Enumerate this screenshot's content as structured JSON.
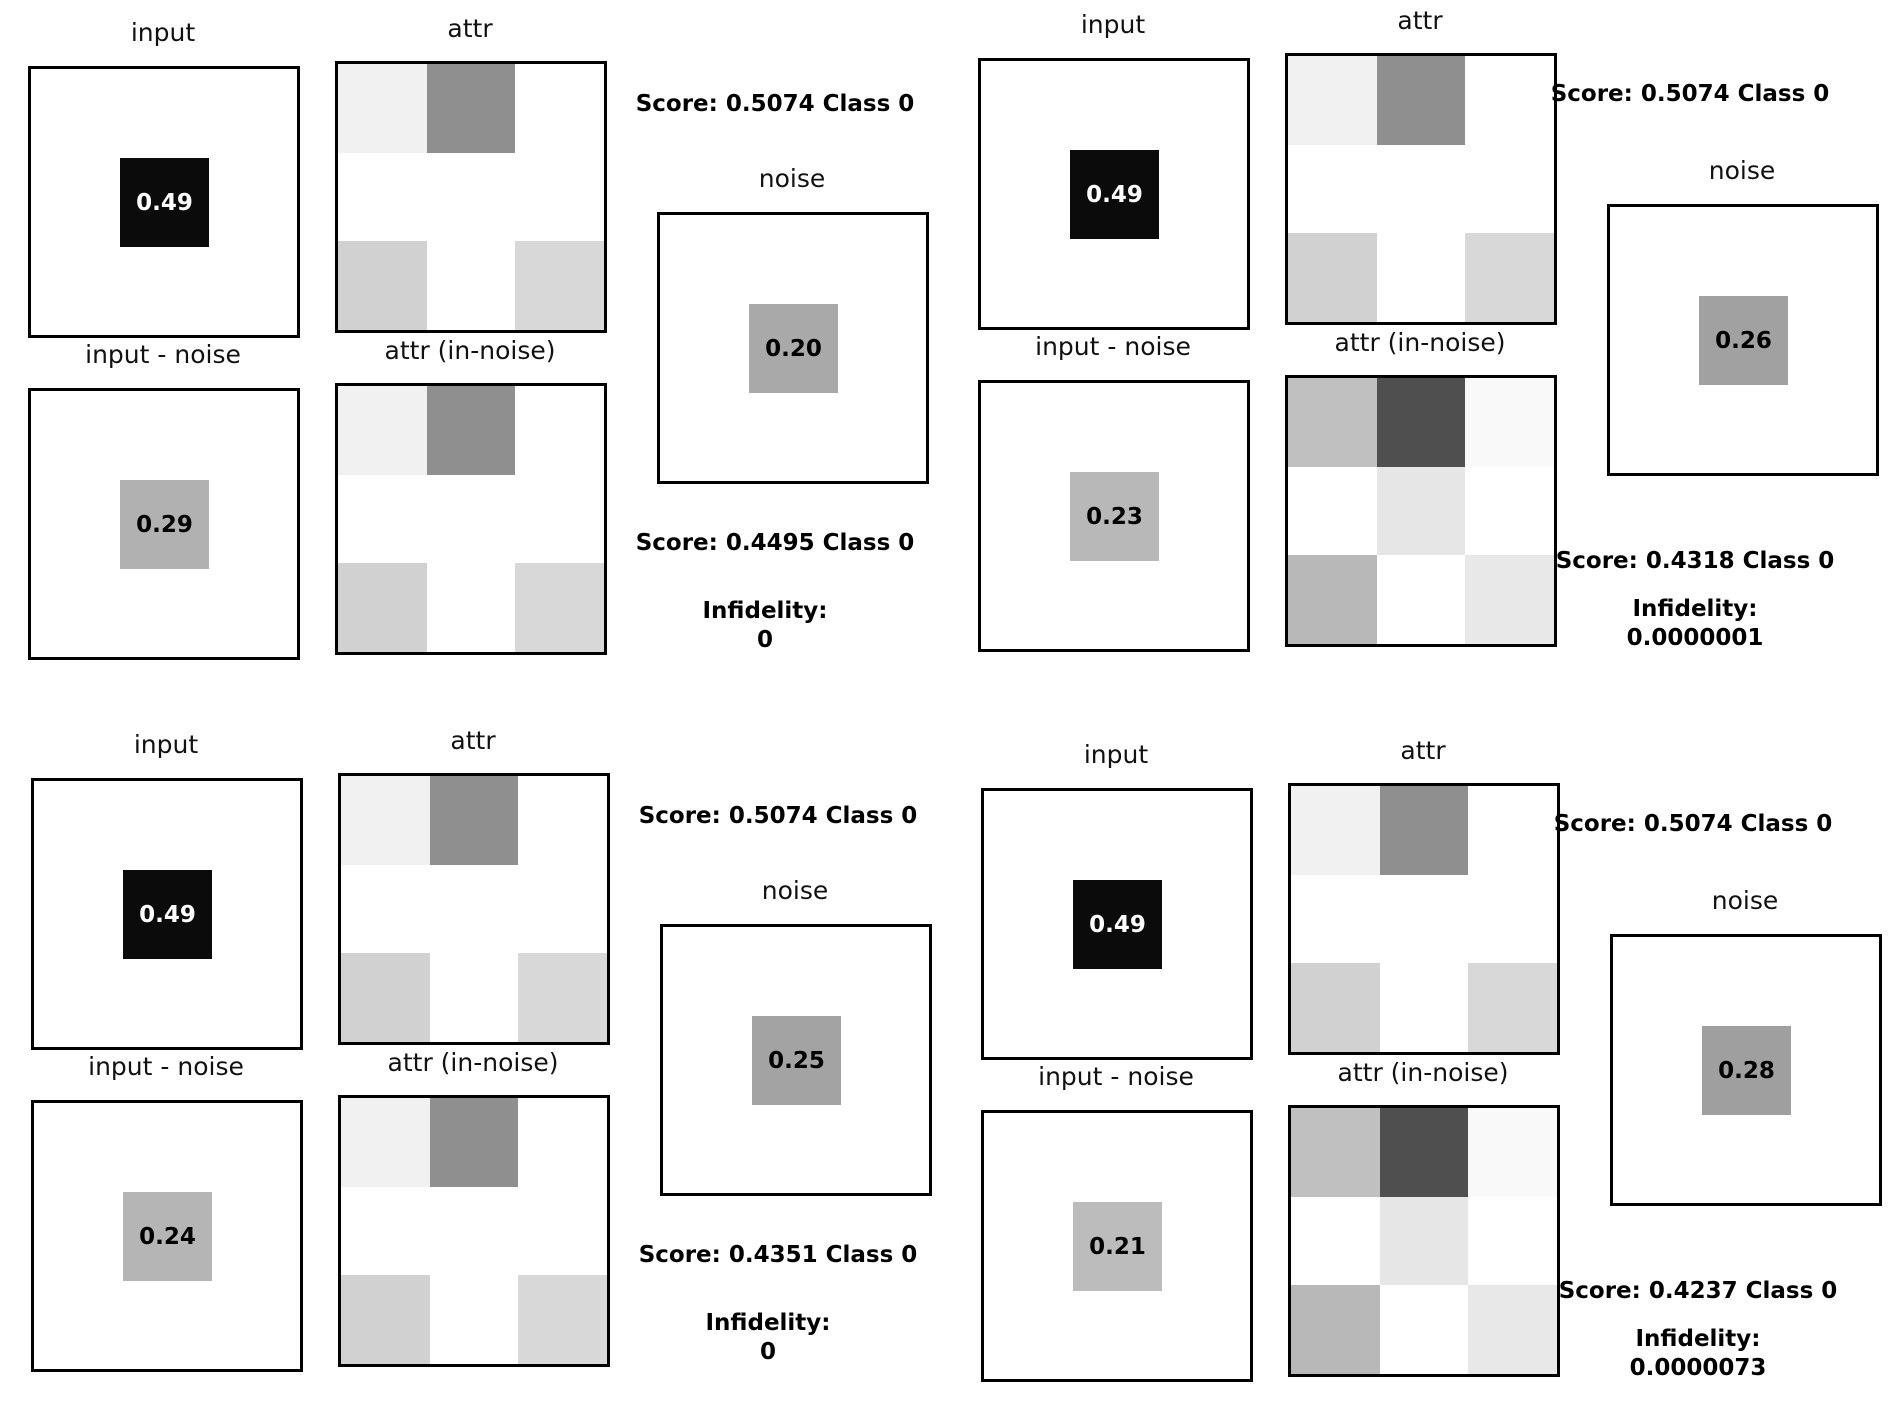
{
  "labels": {
    "input": "input",
    "attr": "attr",
    "noise": "noise",
    "input_minus_noise": "input - noise",
    "attr_in_noise": "attr (in-noise)",
    "infidelity": "Infidelity:"
  },
  "panels": [
    {
      "input_value": "0.49",
      "input_color": "#0b0b0b",
      "input_text_color": "#ffffff",
      "noise_value": "0.20",
      "noise_color": "#a9a9a9",
      "noise_text_color": "#000000",
      "diff_value": "0.29",
      "diff_color": "#b1b1b1",
      "diff_text_color": "#000000",
      "score_top": "Score: 0.5074 Class 0",
      "score_bottom": "Score: 0.4495 Class 0",
      "infidelity_value": "0",
      "attr_cells": [
        "#f1f1f1",
        "#8f8f8f",
        "#ffffff",
        "#ffffff",
        "#ffffff",
        "#ffffff",
        "#d1d1d1",
        "#ffffff",
        "#d8d8d8"
      ],
      "attr_noise_cells": [
        "#f1f1f1",
        "#8f8f8f",
        "#ffffff",
        "#ffffff",
        "#ffffff",
        "#ffffff",
        "#d1d1d1",
        "#ffffff",
        "#d8d8d8"
      ]
    },
    {
      "input_value": "0.49",
      "input_color": "#0b0b0b",
      "input_text_color": "#ffffff",
      "noise_value": "0.26",
      "noise_color": "#a1a1a1",
      "noise_text_color": "#000000",
      "diff_value": "0.23",
      "diff_color": "#b8b8b8",
      "diff_text_color": "#000000",
      "score_top": "Score: 0.5074 Class 0",
      "score_bottom": "Score: 0.4318 Class 0",
      "infidelity_value": "0.0000001",
      "attr_cells": [
        "#f1f1f1",
        "#8f8f8f",
        "#ffffff",
        "#ffffff",
        "#ffffff",
        "#ffffff",
        "#d1d1d1",
        "#ffffff",
        "#d8d8d8"
      ],
      "attr_noise_cells": [
        "#c0c0c0",
        "#4f4f4f",
        "#f9f9f9",
        "#ffffff",
        "#e6e6e6",
        "#ffffff",
        "#b8b8b8",
        "#ffffff",
        "#e8e8e8"
      ]
    },
    {
      "input_value": "0.49",
      "input_color": "#0b0b0b",
      "input_text_color": "#ffffff",
      "noise_value": "0.25",
      "noise_color": "#a3a3a3",
      "noise_text_color": "#000000",
      "diff_value": "0.24",
      "diff_color": "#b5b5b5",
      "diff_text_color": "#000000",
      "score_top": "Score: 0.5074 Class 0",
      "score_bottom": "Score: 0.4351 Class 0",
      "infidelity_value": "0",
      "attr_cells": [
        "#f1f1f1",
        "#8f8f8f",
        "#ffffff",
        "#ffffff",
        "#ffffff",
        "#ffffff",
        "#d1d1d1",
        "#ffffff",
        "#d8d8d8"
      ],
      "attr_noise_cells": [
        "#f1f1f1",
        "#8f8f8f",
        "#ffffff",
        "#ffffff",
        "#ffffff",
        "#ffffff",
        "#d1d1d1",
        "#ffffff",
        "#d8d8d8"
      ]
    },
    {
      "input_value": "0.49",
      "input_color": "#0b0b0b",
      "input_text_color": "#ffffff",
      "noise_value": "0.28",
      "noise_color": "#9f9f9f",
      "noise_text_color": "#000000",
      "diff_value": "0.21",
      "diff_color": "#bcbcbc",
      "diff_text_color": "#000000",
      "score_top": "Score: 0.5074 Class 0",
      "score_bottom": "Score: 0.4237 Class 0",
      "infidelity_value": "0.0000073",
      "attr_cells": [
        "#f1f1f1",
        "#8f8f8f",
        "#ffffff",
        "#ffffff",
        "#ffffff",
        "#ffffff",
        "#d1d1d1",
        "#ffffff",
        "#d8d8d8"
      ],
      "attr_noise_cells": [
        "#c0c0c0",
        "#4f4f4f",
        "#f9f9f9",
        "#ffffff",
        "#e6e6e6",
        "#ffffff",
        "#b8b8b8",
        "#ffffff",
        "#e8e8e8"
      ]
    }
  ]
}
